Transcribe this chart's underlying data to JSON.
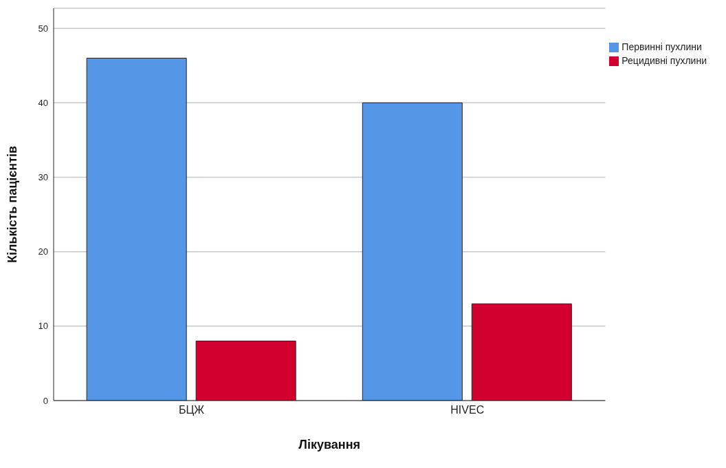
{
  "chart_data": {
    "type": "bar",
    "xlabel": "Лікування",
    "ylabel": "Кількість пацієнтів",
    "categories": [
      "БЦЖ",
      "HIVEC"
    ],
    "series": [
      {
        "name": "Первинні пухлини",
        "color": "#5596e6",
        "values": [
          46,
          40
        ]
      },
      {
        "name": "Рецидивні пухлини",
        "color": "#d2002e",
        "values": [
          8,
          13
        ]
      }
    ],
    "ylim": [
      0,
      52.7
    ],
    "yticks": [
      0,
      10,
      20,
      30,
      40,
      50
    ],
    "grid": "y",
    "legend": "top right"
  }
}
